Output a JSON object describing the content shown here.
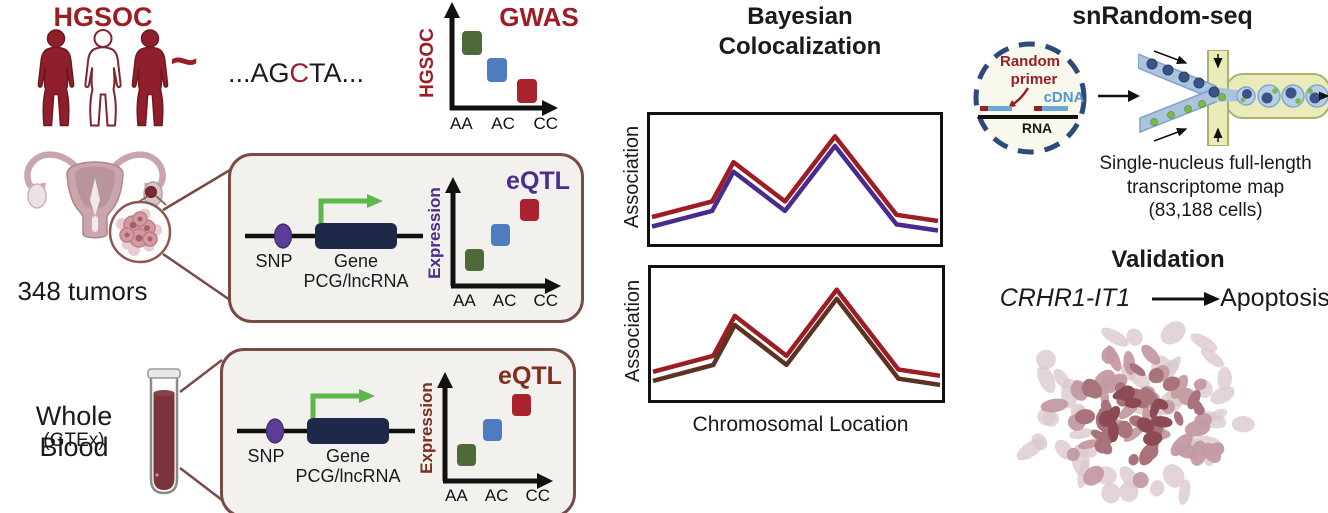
{
  "palette": {
    "dark_red": "#9e1c24",
    "square_red": "#a8232e",
    "square_green": "#4d6a38",
    "square_blue": "#4e7cc0",
    "eqtl_purple": "#4c2d8f",
    "eqtl_maroon": "#7e2d1e",
    "box_border": "#7a4a44",
    "gene_navy": "#1e2849",
    "snp_purple": "#5c3d96",
    "transcription_green": "#5cb849",
    "line_red": "#9e1c24",
    "line_purple": "#4a2a8a",
    "line_brown": "#5e3222",
    "dashed_circle_navy": "#2e4a7a",
    "cdna_blue": "#4f97cc",
    "blood_red": "#7b343c"
  },
  "gwas_section": {
    "cohort_title": "HGSOC",
    "tilde": "~",
    "seq_pre": "...AG",
    "seq_snp": "C",
    "seq_post": "TA...",
    "plot_title": "GWAS",
    "ylabel": "HGSOC",
    "xticks": [
      "AA",
      "AC",
      "CC"
    ]
  },
  "tumor_label": "348 tumors",
  "blood_label": "Whole Blood",
  "blood_sublabel": "(GTEx)",
  "eqtl_tumor": {
    "snp": "SNP",
    "gene": "Gene",
    "gene_type": "PCG/lncRNA",
    "title": "eQTL",
    "ylabel": "Expression",
    "xticks": [
      "AA",
      "AC",
      "CC"
    ]
  },
  "eqtl_blood": {
    "snp": "SNP",
    "gene": "Gene",
    "gene_type": "PCG/lncRNA",
    "title": "eQTL",
    "ylabel": "Expression",
    "xticks": [
      "AA",
      "AC",
      "CC"
    ]
  },
  "coloc": {
    "title1": "Bayesian",
    "title2": "Colocalization",
    "ylabel_top": "Association",
    "ylabel_bottom": "Association",
    "xlabel": "Chromosomal Location",
    "shape": [
      [
        0,
        0.84
      ],
      [
        0.21,
        0.7
      ],
      [
        0.285,
        0.35
      ],
      [
        0.465,
        0.7
      ],
      [
        0.64,
        0.12
      ],
      [
        0.855,
        0.82
      ],
      [
        1,
        0.875
      ]
    ]
  },
  "snrandom": {
    "title": "snRandom-seq",
    "primer_line1": "Random",
    "primer_line2": "primer",
    "cdna": "cDNA",
    "rna": "RNA",
    "caption1": "Single-nucleus full-length",
    "caption2": "transcriptome map",
    "caption3": "(83,188 cells)"
  },
  "validation": {
    "title": "Validation",
    "gene": "CRHR1-IT1",
    "target": "Apoptosis"
  },
  "chart_data": [
    {
      "type": "scatter",
      "title": "GWAS",
      "ylabel": "HGSOC",
      "categories": [
        "AA",
        "AC",
        "CC"
      ],
      "values_normalized": [
        0.82,
        0.55,
        0.32
      ],
      "note": "schematic genotype-risk plot, no numeric axes shown",
      "point_colors": [
        "#4d6a38",
        "#4e7cc0",
        "#a8232e"
      ]
    },
    {
      "type": "scatter",
      "title": "eQTL (348 tumors)",
      "ylabel": "Expression",
      "categories": [
        "AA",
        "AC",
        "CC"
      ],
      "values_normalized": [
        0.28,
        0.5,
        0.72
      ],
      "note": "schematic genotype-expression plot",
      "point_colors": [
        "#4d6a38",
        "#4e7cc0",
        "#a8232e"
      ]
    },
    {
      "type": "scatter",
      "title": "eQTL (Whole Blood GTEx)",
      "ylabel": "Expression",
      "categories": [
        "AA",
        "AC",
        "CC"
      ],
      "values_normalized": [
        0.28,
        0.5,
        0.72
      ],
      "note": "schematic genotype-expression plot",
      "point_colors": [
        "#4d6a38",
        "#4e7cc0",
        "#a8232e"
      ]
    },
    {
      "type": "line",
      "title": "Bayesian Colocalization (top panel)",
      "xlabel": "Chromosomal Location",
      "ylabel": "Association",
      "x_normalized": [
        0,
        0.21,
        0.285,
        0.465,
        0.64,
        0.855,
        1
      ],
      "series": [
        {
          "name": "GWAS association",
          "color": "#9e1c24",
          "y_normalized": [
            0.16,
            0.3,
            0.65,
            0.3,
            0.88,
            0.18,
            0.125
          ]
        },
        {
          "name": "tumor eQTL association",
          "color": "#4a2a8a",
          "y_normalized": [
            0.075,
            0.215,
            0.565,
            0.215,
            0.795,
            0.095,
            0.04
          ]
        }
      ],
      "note": "schematic colocalized peaks, no numeric axes shown"
    },
    {
      "type": "line",
      "title": "Bayesian Colocalization (bottom panel)",
      "xlabel": "Chromosomal Location",
      "ylabel": "Association",
      "x_normalized": [
        0,
        0.21,
        0.285,
        0.465,
        0.64,
        0.855,
        1
      ],
      "series": [
        {
          "name": "GWAS association",
          "color": "#9e1c24",
          "y_normalized": [
            0.16,
            0.3,
            0.65,
            0.3,
            0.88,
            0.18,
            0.125
          ]
        },
        {
          "name": "blood eQTL association",
          "color": "#5e3222",
          "y_normalized": [
            0.075,
            0.215,
            0.565,
            0.215,
            0.795,
            0.095,
            0.04
          ]
        }
      ],
      "note": "schematic colocalized peaks, no numeric axes shown"
    }
  ]
}
